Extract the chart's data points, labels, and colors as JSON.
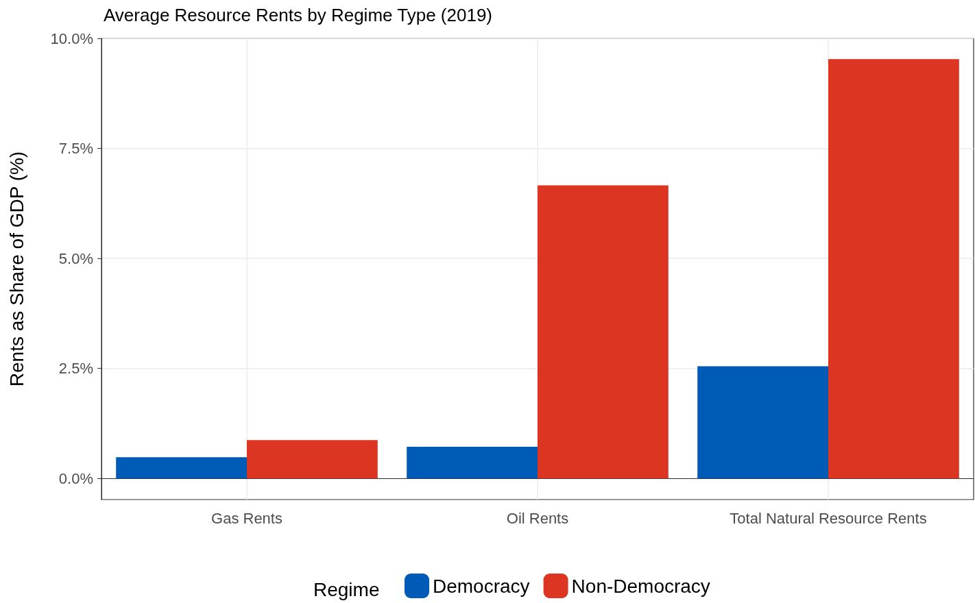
{
  "chart_data": {
    "type": "bar",
    "title": "Average Resource Rents by Regime Type (2019)",
    "ylabel": "Rents as Share of GDP (%)",
    "legend_title": "Regime",
    "categories": [
      "Gas Rents",
      "Oil Rents",
      "Total Natural Resource Rents"
    ],
    "series": [
      {
        "name": "Democracy",
        "color": "#005bb7",
        "values": [
          0.48,
          0.72,
          2.55
        ]
      },
      {
        "name": "Non-Democracy",
        "color": "#dc3522",
        "values": [
          0.87,
          6.66,
          9.53
        ]
      }
    ],
    "ylim": [
      -0.48,
      10.0
    ],
    "yticks": [
      {
        "value": 0,
        "label": "0.0%"
      },
      {
        "value": 2.5,
        "label": "2.5%"
      },
      {
        "value": 5,
        "label": "5.0%"
      },
      {
        "value": 7.5,
        "label": "7.5%"
      },
      {
        "value": 10,
        "label": "10.0%"
      }
    ],
    "grid": true,
    "legend": "bottom"
  }
}
